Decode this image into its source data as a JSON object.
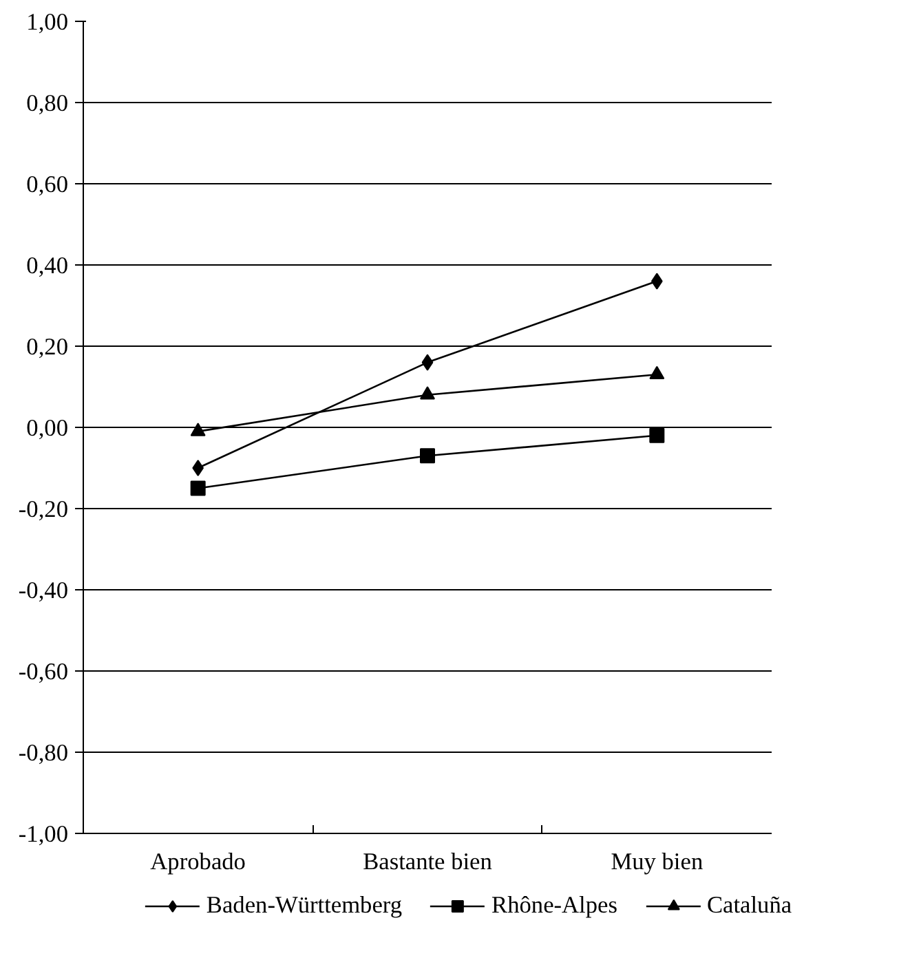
{
  "chart_data": {
    "type": "line",
    "categories": [
      "Aprobado",
      "Bastante bien",
      "Muy bien"
    ],
    "series": [
      {
        "name": "Baden-Württemberg",
        "color": "#000000",
        "marker": "diamond",
        "values": [
          -0.1,
          0.16,
          0.36
        ]
      },
      {
        "name": "Rhône-Alpes",
        "color": "#000000",
        "marker": "square",
        "values": [
          -0.15,
          -0.07,
          -0.02
        ]
      },
      {
        "name": "Cataluña",
        "color": "#000000",
        "marker": "triangle",
        "values": [
          -0.01,
          0.08,
          0.13
        ]
      }
    ],
    "ylim": [
      -1,
      1
    ],
    "yticks": [
      {
        "value": -1,
        "label": "-1,00"
      },
      {
        "value": -0.8,
        "label": "-0,80"
      },
      {
        "value": -0.6,
        "label": "-0,60"
      },
      {
        "value": -0.4,
        "label": "-0,40"
      },
      {
        "value": -0.2,
        "label": "-0,20"
      },
      {
        "value": 0,
        "label": "0,00"
      },
      {
        "value": 0.2,
        "label": "0,20"
      },
      {
        "value": 0.4,
        "label": "0,40"
      },
      {
        "value": 0.6,
        "label": "0,60"
      },
      {
        "value": 0.8,
        "label": "0,80"
      },
      {
        "value": 1,
        "label": "1,00"
      }
    ],
    "grid": "y",
    "legend": "bottom",
    "line_style": "solid"
  }
}
